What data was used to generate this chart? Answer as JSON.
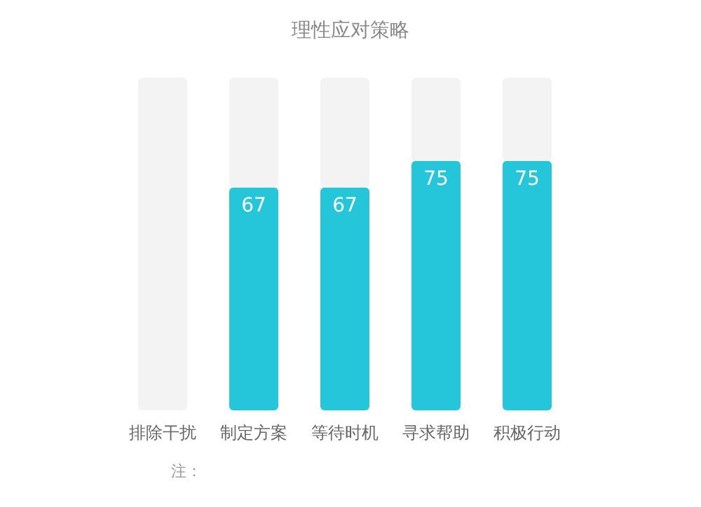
{
  "chart_data": {
    "type": "bar",
    "title": "理性应对策略",
    "categories": [
      "排除干扰",
      "制定方案",
      "等待时机",
      "寻求帮助",
      "积极行动"
    ],
    "stacked": true,
    "series": [
      {
        "color": "#26c6da",
        "values": [
          null,
          67,
          67,
          75,
          75
        ],
        "value_labels": [
          null,
          "67",
          "67",
          "75",
          "75"
        ]
      },
      {
        "color": "#f3f3f3",
        "values": [
          100,
          33,
          33,
          25,
          25
        ]
      }
    ],
    "ylim": [
      0,
      100
    ],
    "annotations": [
      "注："
    ]
  }
}
